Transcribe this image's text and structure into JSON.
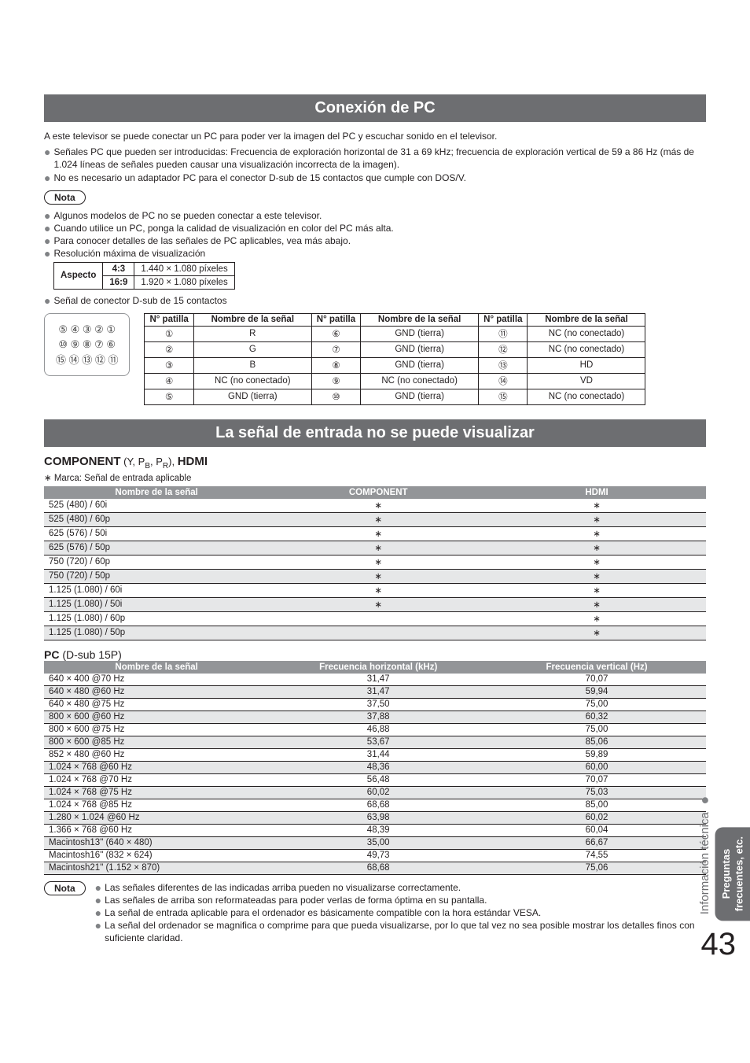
{
  "section1": {
    "title": "Conexión de PC",
    "intro": "A este televisor se puede conectar un PC para poder ver la imagen del PC y escuchar sonido en el televisor.",
    "bullets_top": [
      "Señales PC que pueden ser introducidas: Frecuencia de exploración horizontal de 31 a 69 kHz; frecuencia de exploración vertical de 59 a 86 Hz (más de 1.024 líneas de señales pueden causar una visualización incorrecta de la imagen).",
      "No es necesario un adaptador PC para el conector D-sub de 15 contactos que cumple con DOS/V."
    ],
    "nota_label": "Nota",
    "nota_bullets": [
      "Algunos modelos de PC no se pueden conectar a este televisor.",
      "Cuando utilice un PC, ponga la calidad de visualización en color del PC más alta.",
      "Para conocer detalles de las señales de PC aplicables, vea más abajo.",
      "Resolución máxima de visualización"
    ],
    "aspect_table": {
      "row_label": "Aspecto",
      "rows": [
        {
          "ratio": "4:3",
          "res": "1.440 × 1.080 píxeles"
        },
        {
          "ratio": "16:9",
          "res": "1.920 × 1.080 píxeles"
        }
      ]
    },
    "dsub_bullet": "Señal de conector D-sub de 15 contactos",
    "connector_rows": [
      "⑤ ④ ③ ② ①",
      "⑩ ⑨ ⑧ ⑦ ⑥",
      "⑮ ⑭ ⑬ ⑫ ⑪"
    ],
    "pin_table": {
      "hdr_pin": "N° patilla",
      "hdr_name": "Nombre de la señal",
      "cols": [
        [
          {
            "pin": "①",
            "name": "R"
          },
          {
            "pin": "②",
            "name": "G"
          },
          {
            "pin": "③",
            "name": "B"
          },
          {
            "pin": "④",
            "name": "NC (no conectado)"
          },
          {
            "pin": "⑤",
            "name": "GND (tierra)"
          }
        ],
        [
          {
            "pin": "⑥",
            "name": "GND (tierra)"
          },
          {
            "pin": "⑦",
            "name": "GND (tierra)"
          },
          {
            "pin": "⑧",
            "name": "GND (tierra)"
          },
          {
            "pin": "⑨",
            "name": "NC (no conectado)"
          },
          {
            "pin": "⑩",
            "name": "GND (tierra)"
          }
        ],
        [
          {
            "pin": "⑪",
            "name": "NC (no conectado)"
          },
          {
            "pin": "⑫",
            "name": "NC (no conectado)"
          },
          {
            "pin": "⑬",
            "name": "HD"
          },
          {
            "pin": "⑭",
            "name": "VD"
          },
          {
            "pin": "⑮",
            "name": "NC (no conectado)"
          }
        ]
      ]
    }
  },
  "section2": {
    "title": "La señal de entrada no se puede visualizar",
    "component_heading_strong1": "COMPONENT",
    "component_heading_paren": " (Y, P",
    "component_heading_sub1": "B",
    "component_heading_mid": ", P",
    "component_heading_sub2": "R",
    "component_heading_close": "), ",
    "component_heading_strong2": "HDMI",
    "marca_note": "∗ Marca: Señal de entrada aplicable",
    "sig_table": {
      "hdr_name": "Nombre de la señal",
      "hdr_comp": "COMPONENT",
      "hdr_hdmi": "HDMI",
      "rows": [
        {
          "name": "525 (480) / 60i",
          "comp": "∗",
          "hdmi": "∗",
          "alt": false
        },
        {
          "name": "525 (480) / 60p",
          "comp": "∗",
          "hdmi": "∗",
          "alt": true
        },
        {
          "name": "625 (576) / 50i",
          "comp": "∗",
          "hdmi": "∗",
          "alt": false
        },
        {
          "name": "625 (576) / 50p",
          "comp": "∗",
          "hdmi": "∗",
          "alt": true
        },
        {
          "name": "750 (720) / 60p",
          "comp": "∗",
          "hdmi": "∗",
          "alt": false
        },
        {
          "name": "750 (720) / 50p",
          "comp": "∗",
          "hdmi": "∗",
          "alt": true
        },
        {
          "name": "1.125 (1.080) / 60i",
          "comp": "∗",
          "hdmi": "∗",
          "alt": false
        },
        {
          "name": "1.125 (1.080) / 50i",
          "comp": "∗",
          "hdmi": "∗",
          "alt": true
        },
        {
          "name": "1.125 (1.080) / 60p",
          "comp": "",
          "hdmi": "∗",
          "alt": false
        },
        {
          "name": "1.125 (1.080) / 50p",
          "comp": "",
          "hdmi": "∗",
          "alt": true
        }
      ]
    },
    "pc_heading_strong": "PC",
    "pc_heading_paren": " (D-sub 15P)",
    "pc_table": {
      "hdr_name": "Nombre de la señal",
      "hdr_h": "Frecuencia horizontal (kHz)",
      "hdr_v": "Frecuencia vertical (Hz)",
      "rows": [
        {
          "name": "640 × 400 @70 Hz",
          "h": "31,47",
          "v": "70,07",
          "alt": false
        },
        {
          "name": "640 × 480 @60 Hz",
          "h": "31,47",
          "v": "59,94",
          "alt": true
        },
        {
          "name": "640 × 480 @75 Hz",
          "h": "37,50",
          "v": "75,00",
          "alt": false
        },
        {
          "name": "800 × 600 @60 Hz",
          "h": "37,88",
          "v": "60,32",
          "alt": true
        },
        {
          "name": "800 × 600 @75 Hz",
          "h": "46,88",
          "v": "75,00",
          "alt": false
        },
        {
          "name": "800 × 600 @85 Hz",
          "h": "53,67",
          "v": "85,06",
          "alt": true
        },
        {
          "name": "852 × 480 @60 Hz",
          "h": "31,44",
          "v": "59,89",
          "alt": false
        },
        {
          "name": "1.024 × 768 @60 Hz",
          "h": "48,36",
          "v": "60,00",
          "alt": true
        },
        {
          "name": "1.024 × 768 @70 Hz",
          "h": "56,48",
          "v": "70,07",
          "alt": false
        },
        {
          "name": "1.024 × 768 @75 Hz",
          "h": "60,02",
          "v": "75,03",
          "alt": true
        },
        {
          "name": "1.024 × 768 @85 Hz",
          "h": "68,68",
          "v": "85,00",
          "alt": false
        },
        {
          "name": "1.280 × 1.024 @60 Hz",
          "h": "63,98",
          "v": "60,02",
          "alt": true
        },
        {
          "name": "1.366 × 768 @60 Hz",
          "h": "48,39",
          "v": "60,04",
          "alt": false
        },
        {
          "name": "Macintosh13\" (640 × 480)",
          "h": "35,00",
          "v": "66,67",
          "alt": true
        },
        {
          "name": "Macintosh16\" (832 × 624)",
          "h": "49,73",
          "v": "74,55",
          "alt": false
        },
        {
          "name": "Macintosh21\" (1.152 × 870)",
          "h": "68,68",
          "v": "75,06",
          "alt": true
        }
      ]
    },
    "bottom_nota_label": "Nota",
    "bottom_nota_bullets": [
      "Las señales diferentes de las indicadas arriba pueden no visualizarse correctamente.",
      "Las señales de arriba son reformateadas para poder verlas de forma óptima en su pantalla.",
      "La señal de entrada aplicable para el ordenador es básicamente compatible con la hora estándar VESA.",
      "La señal del ordenador se magnifica o comprime para que pueda visualizarse, por lo que tal vez no sea posible mostrar los detalles finos con suficiente claridad."
    ]
  },
  "side": {
    "info": "Información técnica",
    "faq_l1": "Preguntas",
    "faq_l2": "frecuentes, etc."
  },
  "page_number": "43"
}
